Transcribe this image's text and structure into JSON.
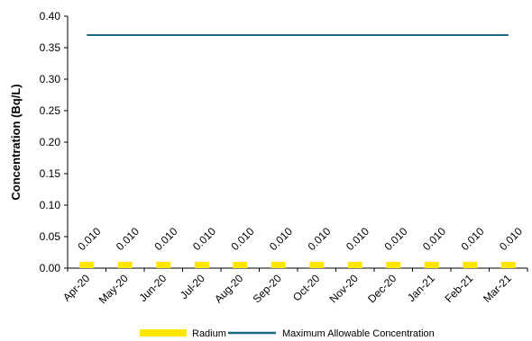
{
  "chart_data": {
    "type": "bar",
    "title": "",
    "xlabel": "",
    "ylabel": "Concentration (Bq/L)",
    "ylim": [
      0,
      0.4
    ],
    "yticks": [
      "0.00",
      "0.05",
      "0.10",
      "0.15",
      "0.20",
      "0.25",
      "0.30",
      "0.35",
      "0.40"
    ],
    "categories": [
      "Apr-20",
      "May-20",
      "Jun-20",
      "Jul-20",
      "Aug-20",
      "Sep-20",
      "Oct-20",
      "Nov-20",
      "Dec-20",
      "Jan-21",
      "Feb-21",
      "Mar-21"
    ],
    "series": [
      {
        "name": "Radium",
        "type": "bar",
        "color": "#FFE600",
        "values": [
          0.01,
          0.01,
          0.01,
          0.01,
          0.01,
          0.01,
          0.01,
          0.01,
          0.01,
          0.01,
          0.01,
          0.01
        ],
        "data_labels": [
          "0.010",
          "0.010",
          "0.010",
          "0.010",
          "0.010",
          "0.010",
          "0.010",
          "0.010",
          "0.010",
          "0.010",
          "0.010",
          "0.010"
        ]
      },
      {
        "name": "Maximum Allowable Concentration",
        "type": "line",
        "color": "#1F6680",
        "values": [
          0.37,
          0.37,
          0.37,
          0.37,
          0.37,
          0.37,
          0.37,
          0.37,
          0.37,
          0.37,
          0.37,
          0.37
        ]
      }
    ],
    "grid": false,
    "legend": "bottom"
  }
}
